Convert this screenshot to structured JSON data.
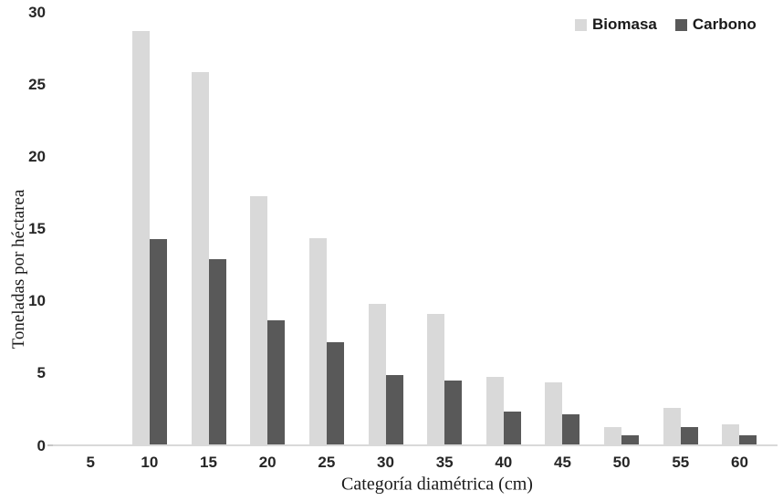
{
  "chart_data": {
    "type": "bar",
    "title": "",
    "xlabel": "Categoría diamétrica (cm)",
    "ylabel": "Toneladas por héctarea",
    "categories": [
      "5",
      "10",
      "15",
      "20",
      "25",
      "30",
      "35",
      "40",
      "45",
      "50",
      "55",
      "60"
    ],
    "series": [
      {
        "name": "Biomasa",
        "color": "#d9d9d9",
        "values": [
          0,
          28.7,
          25.9,
          17.3,
          14.4,
          9.8,
          9.1,
          4.8,
          4.4,
          1.3,
          2.6,
          1.5
        ]
      },
      {
        "name": "Carbono",
        "color": "#595959",
        "values": [
          0,
          14.3,
          12.9,
          8.7,
          7.2,
          4.9,
          4.5,
          2.4,
          2.2,
          0.7,
          1.3,
          0.7
        ]
      }
    ],
    "ylim": [
      0,
      30
    ],
    "yticks": [
      0,
      5,
      10,
      15,
      20,
      25,
      30
    ],
    "grid": false,
    "legend_position": "top-right",
    "axis_line_color": "#d9d9d9",
    "background_color": "#ffffff"
  }
}
